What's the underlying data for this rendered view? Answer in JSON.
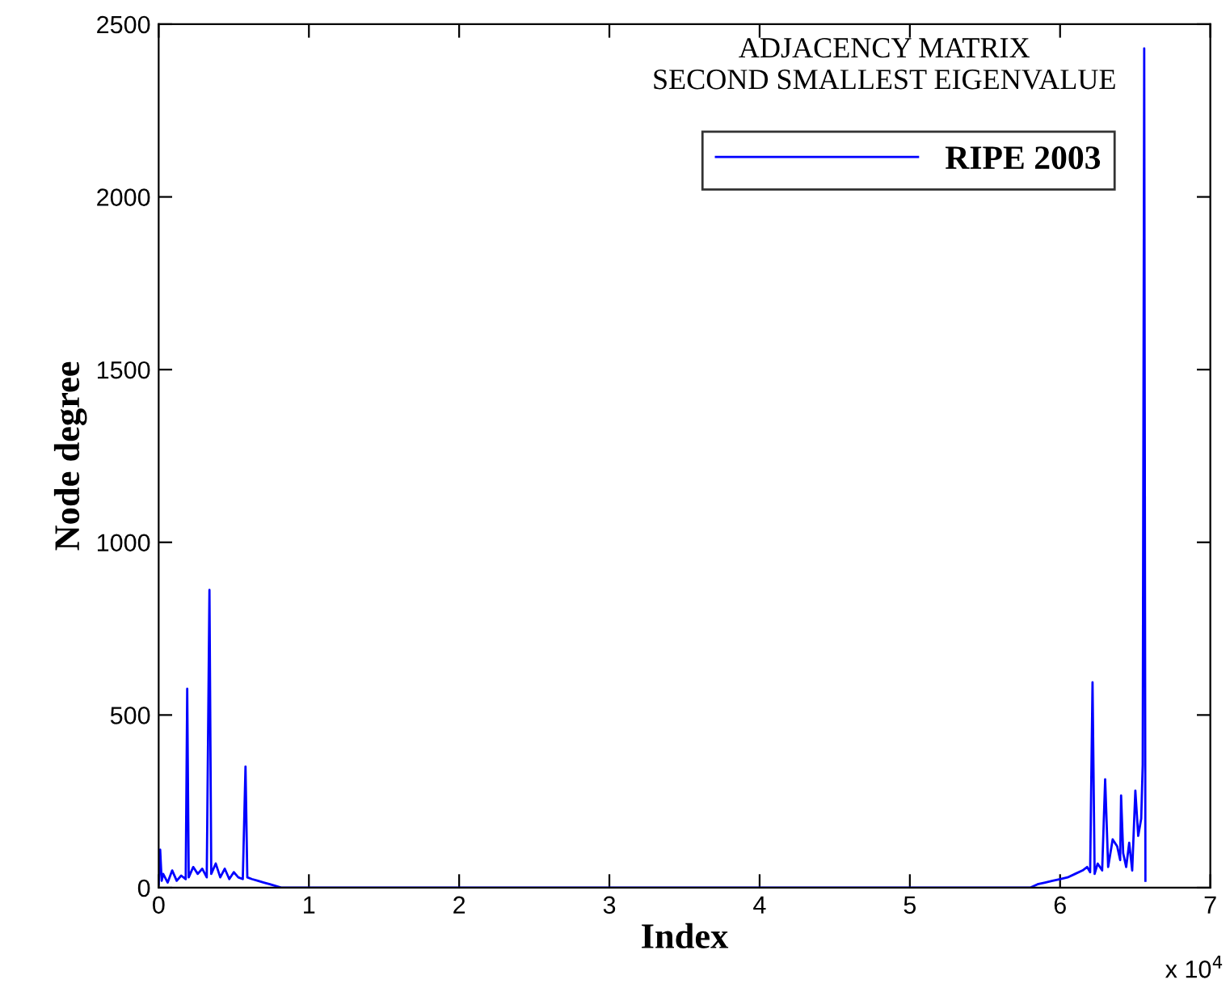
{
  "chart_data": {
    "type": "line",
    "title": "ADJACENCY MATRIX\nSECOND SMALLEST EIGENVALUE",
    "xlabel": "Index",
    "ylabel": "Node degree",
    "annotations": [
      "x 10$^{4}$"
    ],
    "series": [
      {
        "name": "RIPE 2003",
        "color": "#0000ff",
        "x": [
          0,
          0.01,
          0.02,
          0.03,
          0.06,
          0.09,
          0.12,
          0.15,
          0.18,
          0.19,
          0.2,
          0.23,
          0.26,
          0.29,
          0.32,
          0.338,
          0.35,
          0.38,
          0.41,
          0.44,
          0.47,
          0.5,
          0.53,
          0.56,
          0.578,
          0.59,
          0.62,
          0.66,
          0.7,
          0.74,
          0.78,
          0.82,
          5.8,
          5.85,
          5.9,
          5.95,
          6.0,
          6.05,
          6.1,
          6.15,
          6.18,
          6.2,
          6.216,
          6.23,
          6.25,
          6.28,
          6.3,
          6.32,
          6.35,
          6.38,
          6.4,
          6.406,
          6.42,
          6.44,
          6.46,
          6.48,
          6.501,
          6.52,
          6.54,
          6.55,
          6.56,
          6.568
        ],
        "values": [
          10,
          110,
          20,
          40,
          15,
          50,
          20,
          35,
          25,
          576,
          30,
          60,
          40,
          55,
          30,
          862,
          40,
          70,
          30,
          55,
          25,
          45,
          30,
          25,
          351,
          30,
          25,
          20,
          15,
          10,
          5,
          0,
          0,
          10,
          15,
          20,
          25,
          30,
          40,
          50,
          60,
          45,
          595,
          40,
          70,
          50,
          314,
          60,
          140,
          120,
          80,
          267,
          100,
          60,
          130,
          50,
          281,
          150,
          200,
          356,
          2430,
          20
        ]
      }
    ],
    "xlim": [
      0,
      7
    ],
    "ylim": [
      0,
      2500
    ],
    "xticks": [
      0,
      1,
      2,
      3,
      4,
      5,
      6,
      7
    ],
    "yticks": [
      0,
      500,
      1000,
      1500,
      2000,
      2500
    ],
    "legend": "top right",
    "marker": "none",
    "line_style": "solid"
  }
}
